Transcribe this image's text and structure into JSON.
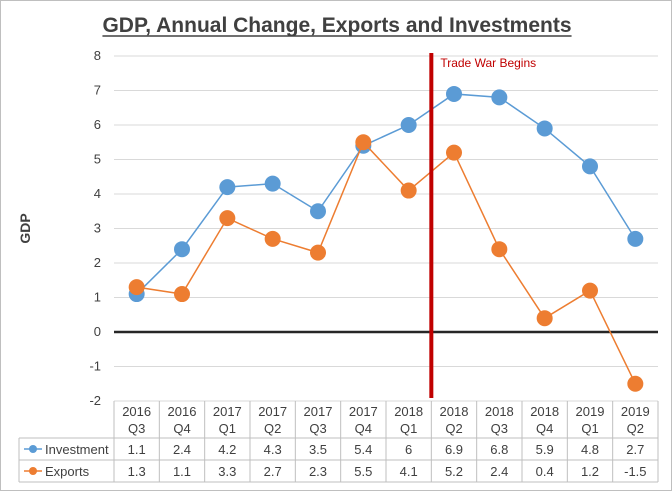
{
  "chart_data": {
    "type": "line",
    "title": "GDP, Annual Change, Exports and Investments",
    "ylabel": "GDP",
    "xlabel": "",
    "ylim": [
      -2,
      8
    ],
    "yticks": [
      -2,
      -1,
      0,
      1,
      2,
      3,
      4,
      5,
      6,
      7,
      8
    ],
    "grid": true,
    "legend": "data-table",
    "categories": [
      [
        "2016",
        "Q3"
      ],
      [
        "2016",
        "Q4"
      ],
      [
        "2017",
        "Q1"
      ],
      [
        "2017",
        "Q2"
      ],
      [
        "2017",
        "Q3"
      ],
      [
        "2017",
        "Q4"
      ],
      [
        "2018",
        "Q1"
      ],
      [
        "2018",
        "Q2"
      ],
      [
        "2018",
        "Q3"
      ],
      [
        "2018",
        "Q4"
      ],
      [
        "2019",
        "Q1"
      ],
      [
        "2019",
        "Q2"
      ]
    ],
    "series": [
      {
        "name": "Investment",
        "color": "#5b9bd5",
        "values": [
          1.1,
          2.4,
          4.2,
          4.3,
          3.5,
          5.4,
          6,
          6.9,
          6.8,
          5.9,
          4.8,
          2.7
        ]
      },
      {
        "name": "Exports",
        "color": "#ed7d31",
        "values": [
          1.3,
          1.1,
          3.3,
          2.7,
          2.3,
          5.5,
          4.1,
          5.2,
          2.4,
          0.4,
          1.2,
          -1.5
        ]
      }
    ],
    "annotations": [
      {
        "text": "Trade War Begins",
        "color": "#c00000",
        "between": [
          [
            "2018",
            "Q1"
          ],
          [
            "2018",
            "Q2"
          ]
        ]
      }
    ],
    "zero_line_color": "#262626"
  }
}
